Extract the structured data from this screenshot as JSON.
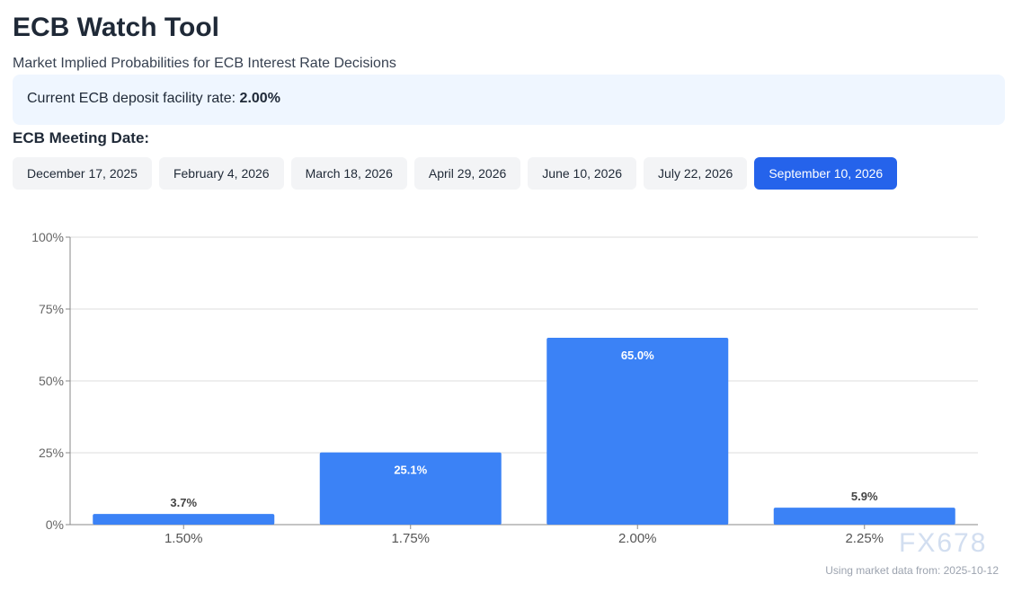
{
  "header": {
    "title": "ECB Watch Tool",
    "subtitle": "Market Implied Probabilities for ECB Interest Rate Decisions"
  },
  "current_rate": {
    "label": "Current ECB deposit facility rate: ",
    "value": "2.00%"
  },
  "meeting": {
    "label": "ECB Meeting Date:",
    "dates": [
      "December 17, 2025",
      "February 4, 2026",
      "March 18, 2026",
      "April 29, 2026",
      "June 10, 2026",
      "July 22, 2026",
      "September 10, 2026"
    ],
    "selected": "September 10, 2026"
  },
  "colors": {
    "bar": "#3b82f6",
    "active": "#2563eb"
  },
  "chart_data": {
    "type": "bar",
    "categories": [
      "1.50%",
      "1.75%",
      "2.00%",
      "2.25%"
    ],
    "values": [
      3.7,
      25.1,
      65.0,
      5.9
    ],
    "data_labels": [
      "3.7%",
      "25.1%",
      "65.0%",
      "5.9%"
    ],
    "ylim": [
      0,
      100
    ],
    "yticks": [
      "0%",
      "25%",
      "50%",
      "75%",
      "100%"
    ],
    "grid": true
  },
  "footer": {
    "text": "Using market data from: 2025-10-12"
  },
  "watermark": "FX678"
}
